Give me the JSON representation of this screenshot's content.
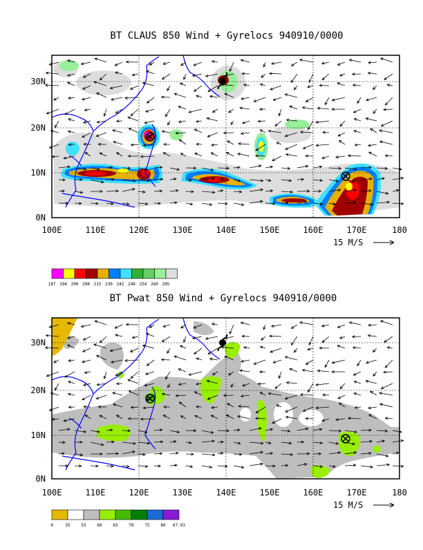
{
  "colors": {
    "coast": "#0000ff",
    "frame": "#000000",
    "claus_scale": [
      "#ff00ff",
      "#ffff00",
      "#ff0000",
      "#a00000",
      "#e6b000",
      "#0080ff",
      "#40e0ff",
      "#33b033",
      "#66cc66",
      "#99ee99",
      "#dddddd"
    ],
    "pwat_scale": [
      "#e6b800",
      "#ffffff",
      "#bebebe",
      "#99ee00",
      "#44bb00",
      "#008000",
      "#1a6bd6",
      "#8a1ad6"
    ]
  },
  "panel1": {
    "title": "BT CLAUS 850 Wind + Gyrelocs 940910/0000",
    "lat_labels": [
      "30N",
      "20N",
      "10N",
      "0N"
    ],
    "lon_labels": [
      "100E",
      "110E",
      "120E",
      "130E",
      "140E",
      "150E",
      "160E",
      "170E",
      "180"
    ],
    "ref_vector": "15 M/S",
    "legend_labels": [
      "187",
      "194",
      "200",
      "208",
      "215",
      "230",
      "242",
      "248",
      "254",
      "260",
      "285"
    ],
    "gyre_locations": [
      {
        "lon": 122.5,
        "lat": 18.5,
        "symbol": "circled-x"
      },
      {
        "lon": 167.0,
        "lat": 9.0,
        "symbol": "circled-x"
      },
      {
        "lon": 140.0,
        "lat": 30.0,
        "symbol": "typhoon"
      }
    ]
  },
  "panel2": {
    "title": "BT Pwat 850 Wind + Gyrelocs 940910/0000",
    "lat_labels": [
      "30N",
      "20N",
      "10N",
      "0N"
    ],
    "lon_labels": [
      "100E",
      "110E",
      "120E",
      "130E",
      "140E",
      "150E",
      "160E",
      "170E",
      "180"
    ],
    "ref_vector": "15 M/S",
    "legend_labels": [
      "0",
      "35",
      "55",
      "60",
      "65",
      "70",
      "75",
      "80",
      "67.93"
    ],
    "gyre_locations": [
      {
        "lon": 122.5,
        "lat": 18.5,
        "symbol": "circled-x"
      },
      {
        "lon": 167.0,
        "lat": 9.0,
        "symbol": "circled-x"
      },
      {
        "lon": 140.0,
        "lat": 30.0,
        "symbol": "typhoon"
      }
    ]
  }
}
